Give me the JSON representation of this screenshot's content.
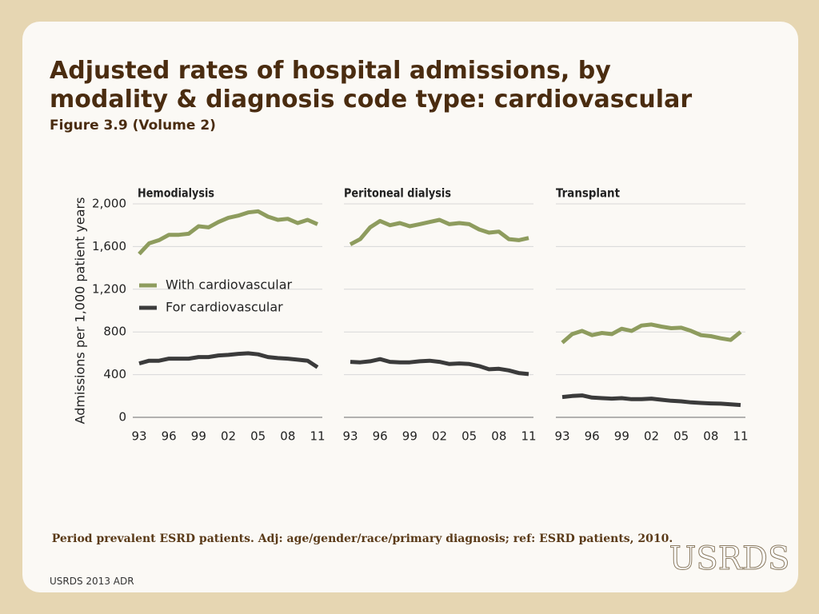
{
  "title": "Adjusted rates of hospital admissions, by modality & diagnosis code type: cardiovascular",
  "subtitle": "Figure 3.9 (Volume 2)",
  "note": "Period prevalent ESRD patients. Adj: age/gender/race/primary diagnosis; ref: ESRD patients, 2010.",
  "footer": "USRDS 2013 ADR",
  "logo": "USRDS",
  "chart_data": [
    {
      "type": "line",
      "title": "Hemodialysis",
      "y_label": "Admissions per 1,000 patient years",
      "categories": [
        "93",
        null,
        null,
        "96",
        null,
        null,
        "99",
        null,
        null,
        "02",
        null,
        null,
        "05",
        null,
        null,
        "08",
        null,
        null,
        "11"
      ],
      "ylim": [
        0,
        2000
      ],
      "yticks": [
        0,
        400,
        800,
        {
          "value": 1200,
          "label": "1,200"
        },
        {
          "value": 1600,
          "label": "1,600"
        },
        {
          "value": 2000,
          "label": "2,000"
        }
      ],
      "grid": true,
      "legend": "left",
      "series": [
        {
          "name": "With cardiovascular",
          "color": "#8e9c5e",
          "values": [
            1530,
            1630,
            1660,
            1710,
            1710,
            1720,
            1790,
            1780,
            1830,
            1870,
            1890,
            1920,
            1930,
            1880,
            1850,
            1860,
            1820,
            1850,
            1810
          ]
        },
        {
          "name": "For cardiovascular",
          "color": "#3b3b3b",
          "values": [
            505,
            530,
            530,
            550,
            550,
            550,
            565,
            565,
            580,
            585,
            595,
            600,
            590,
            565,
            555,
            550,
            540,
            530,
            470
          ]
        }
      ]
    },
    {
      "type": "line",
      "title": "Peritoneal dialysis",
      "categories": [
        "93",
        null,
        null,
        "96",
        null,
        null,
        "99",
        null,
        null,
        "02",
        null,
        null,
        "05",
        null,
        null,
        "08",
        null,
        null,
        "11"
      ],
      "ylim": [
        0,
        2000
      ],
      "series": [
        {
          "color": "#8e9c5e",
          "values": [
            1620,
            1670,
            1780,
            1840,
            1800,
            1820,
            1790,
            1810,
            1830,
            1850,
            1810,
            1820,
            1810,
            1760,
            1730,
            1740,
            1670,
            1660,
            1680
          ]
        },
        {
          "color": "#3b3b3b",
          "values": [
            520,
            515,
            525,
            545,
            520,
            515,
            515,
            525,
            530,
            520,
            500,
            505,
            500,
            480,
            450,
            455,
            440,
            415,
            405
          ]
        }
      ]
    },
    {
      "type": "line",
      "title": "Transplant",
      "categories": [
        "93",
        null,
        null,
        "96",
        null,
        null,
        "99",
        null,
        null,
        "02",
        null,
        null,
        "05",
        null,
        null,
        "08",
        null,
        null,
        "11"
      ],
      "ylim": [
        0,
        2000
      ],
      "series": [
        {
          "color": "#8e9c5e",
          "values": [
            700,
            780,
            810,
            770,
            790,
            780,
            830,
            810,
            860,
            870,
            850,
            835,
            840,
            810,
            770,
            760,
            740,
            725,
            800
          ]
        },
        {
          "color": "#3b3b3b",
          "values": [
            190,
            200,
            205,
            185,
            180,
            175,
            180,
            170,
            170,
            175,
            165,
            155,
            150,
            140,
            135,
            130,
            128,
            122,
            115
          ]
        }
      ]
    }
  ]
}
